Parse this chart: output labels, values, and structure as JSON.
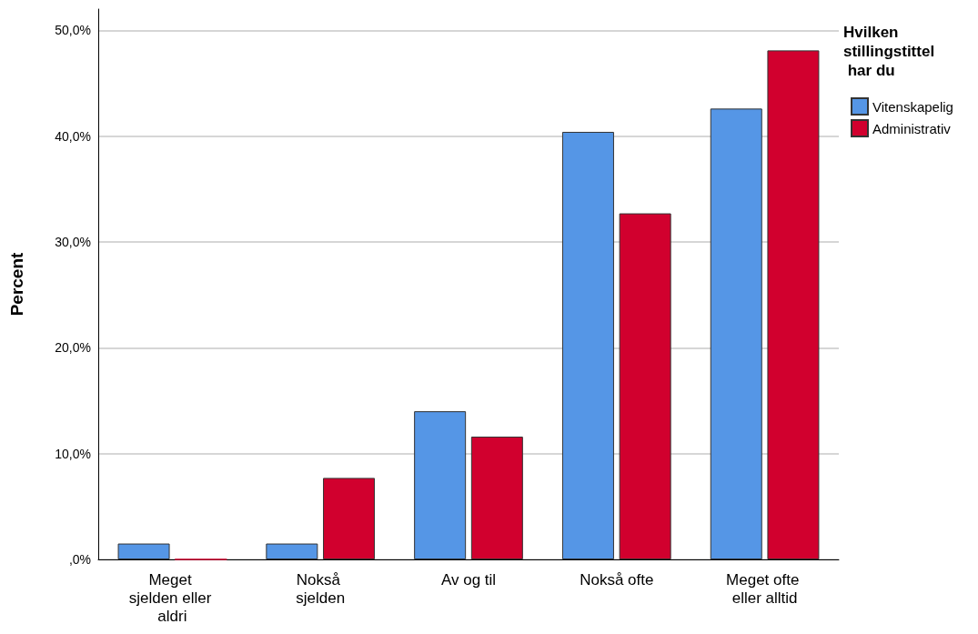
{
  "chart_data": {
    "type": "bar",
    "ylabel": "Percent",
    "legend_title": "Hvilken stillingstittel har du",
    "categories": [
      "Meget sjelden eller aldri",
      "Nokså sjelden",
      "Av og til",
      "Nokså ofte",
      "Meget ofte eller alltid"
    ],
    "series": [
      {
        "name": "Vitenskapelig",
        "color": "#5596e6",
        "values": [
          1.5,
          1.5,
          14.0,
          40.4,
          42.6
        ]
      },
      {
        "name": "Administrativ",
        "color": "#d1002e",
        "values": [
          0,
          7.7,
          11.6,
          32.7,
          48.1
        ]
      }
    ],
    "ylim": [
      0,
      52
    ],
    "yticks": [
      {
        "value": 0,
        "label": ",0%"
      },
      {
        "value": 10,
        "label": "10,0%"
      },
      {
        "value": 20,
        "label": "20,0%"
      },
      {
        "value": 30,
        "label": "30,0%"
      },
      {
        "value": 40,
        "label": "40,0%"
      },
      {
        "value": 50,
        "label": "50,0%"
      }
    ],
    "grid": "y",
    "legend": "top right"
  }
}
